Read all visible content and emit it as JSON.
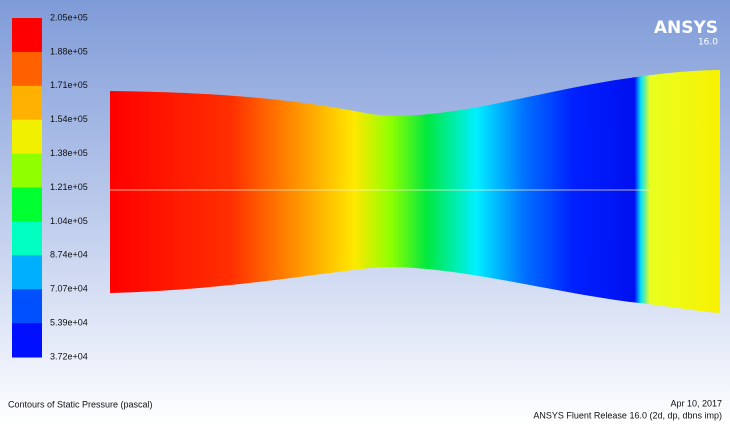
{
  "colorbar": {
    "labels": [
      "2.05e+05",
      "1.88e+05",
      "1.71e+05",
      "1.54e+05",
      "1.38e+05",
      "1.21e+05",
      "1.04e+05",
      "8.74e+04",
      "7.07e+04",
      "5.39e+04",
      "3.72e+04"
    ]
  },
  "logo": {
    "brand": "ANSYS",
    "version": "16.0"
  },
  "footer": {
    "caption": "Contours of Static Pressure (pascal)",
    "date": "Apr 10, 2017",
    "release": "ANSYS Fluent Release 16.0 (2d, dp, dbns imp)"
  }
}
